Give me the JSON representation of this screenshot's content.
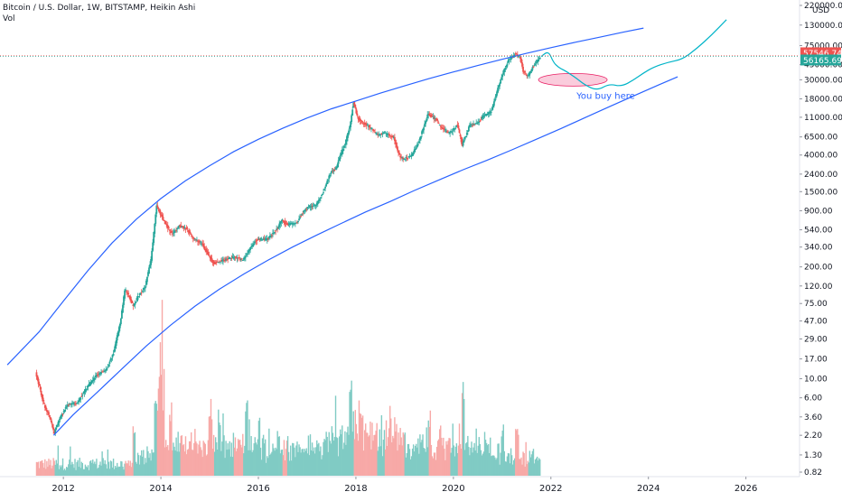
{
  "header": {
    "symbol_line": "Bitcoin / U.S. Dollar, 1W, BITSTAMP, Heikin Ashi",
    "volume_label": "Vol"
  },
  "chart_data": {
    "type": "candlestick",
    "title": "Bitcoin / U.S. Dollar, 1W, BITSTAMP, Heikin Ashi",
    "y_scale": "log",
    "y_unit": "USD",
    "x_range": [
      2010.7,
      2027.1
    ],
    "y_range": [
      0.82,
      220000
    ],
    "y_ticks": [
      "220000.00",
      "130000.00",
      "75000.00",
      "45000.00",
      "30000.00",
      "18000.00",
      "11000.00",
      "6500.00",
      "4000.00",
      "2400.00",
      "1500.00",
      "900.00",
      "540.00",
      "340.00",
      "200.00",
      "120.00",
      "75.00",
      "47.00",
      "29.00",
      "17.00",
      "10.00",
      "6.00",
      "3.60",
      "2.20",
      "1.30",
      "0.82"
    ],
    "y_tick_values": [
      220000,
      130000,
      75000,
      45000,
      30000,
      18000,
      11000,
      6500,
      4000,
      2400,
      1500,
      900,
      540,
      340,
      200,
      120,
      75,
      47,
      29,
      17,
      10,
      6,
      3.6,
      2.2,
      1.3,
      0.82
    ],
    "x_ticks": [
      2012,
      2014,
      2016,
      2018,
      2020,
      2022,
      2024,
      2026
    ],
    "x_tick_labels": [
      "2012",
      "2014",
      "2016",
      "2018",
      "2020",
      "2022",
      "2024",
      "2026"
    ],
    "price_path": [
      [
        2011.45,
        12
      ],
      [
        2011.62,
        5
      ],
      [
        2011.75,
        3.5
      ],
      [
        2011.83,
        2.3
      ],
      [
        2011.95,
        3.5
      ],
      [
        2012.1,
        5
      ],
      [
        2012.3,
        5.2
      ],
      [
        2012.5,
        8
      ],
      [
        2012.7,
        11
      ],
      [
        2012.9,
        13
      ],
      [
        2013.05,
        20
      ],
      [
        2013.2,
        50
      ],
      [
        2013.28,
        110
      ],
      [
        2013.35,
        95
      ],
      [
        2013.45,
        70
      ],
      [
        2013.55,
        90
      ],
      [
        2013.7,
        120
      ],
      [
        2013.82,
        250
      ],
      [
        2013.9,
        700
      ],
      [
        2013.93,
        1050
      ],
      [
        2014.0,
        850
      ],
      [
        2014.1,
        650
      ],
      [
        2014.25,
        480
      ],
      [
        2014.4,
        600
      ],
      [
        2014.55,
        550
      ],
      [
        2014.7,
        420
      ],
      [
        2014.85,
        380
      ],
      [
        2015.0,
        270
      ],
      [
        2015.1,
        220
      ],
      [
        2015.3,
        240
      ],
      [
        2015.5,
        260
      ],
      [
        2015.7,
        240
      ],
      [
        2015.85,
        330
      ],
      [
        2016.0,
        420
      ],
      [
        2016.2,
        420
      ],
      [
        2016.4,
        550
      ],
      [
        2016.5,
        700
      ],
      [
        2016.6,
        620
      ],
      [
        2016.8,
        650
      ],
      [
        2016.95,
        900
      ],
      [
        2017.05,
        1000
      ],
      [
        2017.2,
        1050
      ],
      [
        2017.35,
        1500
      ],
      [
        2017.5,
        2500
      ],
      [
        2017.6,
        2700
      ],
      [
        2017.7,
        4000
      ],
      [
        2017.8,
        5500
      ],
      [
        2017.9,
        9000
      ],
      [
        2017.97,
        16500
      ],
      [
        2018.05,
        11000
      ],
      [
        2018.15,
        9500
      ],
      [
        2018.3,
        8500
      ],
      [
        2018.45,
        7000
      ],
      [
        2018.6,
        7200
      ],
      [
        2018.8,
        6400
      ],
      [
        2018.9,
        4000
      ],
      [
        2019.0,
        3600
      ],
      [
        2019.15,
        3900
      ],
      [
        2019.3,
        5500
      ],
      [
        2019.45,
        10000
      ],
      [
        2019.5,
        12000
      ],
      [
        2019.65,
        10500
      ],
      [
        2019.8,
        8000
      ],
      [
        2019.95,
        7200
      ],
      [
        2020.1,
        9000
      ],
      [
        2020.2,
        5200
      ],
      [
        2020.35,
        8800
      ],
      [
        2020.5,
        9300
      ],
      [
        2020.65,
        11500
      ],
      [
        2020.8,
        13000
      ],
      [
        2020.95,
        26000
      ],
      [
        2021.05,
        38000
      ],
      [
        2021.15,
        50000
      ],
      [
        2021.28,
        60000
      ],
      [
        2021.38,
        56000
      ],
      [
        2021.45,
        38000
      ],
      [
        2021.55,
        33000
      ],
      [
        2021.62,
        40000
      ],
      [
        2021.72,
        48000
      ],
      [
        2021.8,
        56000
      ]
    ],
    "projection_path": [
      [
        2021.8,
        56000
      ],
      [
        2021.95,
        65000
      ],
      [
        2022.05,
        48000
      ],
      [
        2022.15,
        42000
      ],
      [
        2022.3,
        38000
      ],
      [
        2022.5,
        32000
      ],
      [
        2022.7,
        26000
      ],
      [
        2022.95,
        22500
      ],
      [
        2023.2,
        27000
      ],
      [
        2023.45,
        25000
      ],
      [
        2023.7,
        30000
      ],
      [
        2023.9,
        36000
      ],
      [
        2024.1,
        42000
      ],
      [
        2024.4,
        48000
      ],
      [
        2024.7,
        52000
      ],
      [
        2025.0,
        70000
      ],
      [
        2025.3,
        100000
      ],
      [
        2025.6,
        150000
      ]
    ],
    "upper_curve": [
      [
        2010.85,
        14.5
      ],
      [
        2011.5,
        35
      ],
      [
        2012.0,
        80
      ],
      [
        2012.5,
        180
      ],
      [
        2013.0,
        380
      ],
      [
        2013.5,
        720
      ],
      [
        2014.0,
        1250
      ],
      [
        2014.5,
        2000
      ],
      [
        2015.0,
        3000
      ],
      [
        2015.5,
        4400
      ],
      [
        2016.0,
        6100
      ],
      [
        2016.5,
        8200
      ],
      [
        2017.0,
        10800
      ],
      [
        2017.5,
        13800
      ],
      [
        2018.0,
        17000
      ],
      [
        2018.5,
        21000
      ],
      [
        2019.0,
        25500
      ],
      [
        2019.5,
        31000
      ],
      [
        2020.0,
        37000
      ],
      [
        2020.5,
        44000
      ],
      [
        2021.0,
        52000
      ],
      [
        2021.5,
        61000
      ],
      [
        2022.0,
        71000
      ],
      [
        2022.5,
        82000
      ],
      [
        2023.0,
        94000
      ],
      [
        2023.5,
        108000
      ],
      [
        2023.9,
        120000
      ]
    ],
    "lower_curve": [
      [
        2011.8,
        2.2
      ],
      [
        2012.2,
        3.8
      ],
      [
        2012.7,
        7
      ],
      [
        2013.2,
        13
      ],
      [
        2013.7,
        24
      ],
      [
        2014.2,
        42
      ],
      [
        2014.7,
        70
      ],
      [
        2015.2,
        110
      ],
      [
        2015.7,
        165
      ],
      [
        2016.2,
        240
      ],
      [
        2016.7,
        340
      ],
      [
        2017.2,
        470
      ],
      [
        2017.7,
        640
      ],
      [
        2018.2,
        870
      ],
      [
        2018.7,
        1150
      ],
      [
        2019.2,
        1550
      ],
      [
        2019.7,
        2050
      ],
      [
        2020.2,
        2700
      ],
      [
        2020.7,
        3500
      ],
      [
        2021.2,
        4600
      ],
      [
        2021.7,
        6100
      ],
      [
        2022.2,
        8100
      ],
      [
        2022.7,
        10900
      ],
      [
        2023.2,
        14600
      ],
      [
        2023.7,
        19500
      ],
      [
        2024.2,
        26000
      ],
      [
        2024.6,
        32500
      ]
    ],
    "volume_spikes": [
      [
        2013.45,
        0.25
      ],
      [
        2013.9,
        0.5
      ],
      [
        2013.95,
        0.7
      ],
      [
        2014.0,
        1.0
      ],
      [
        2014.05,
        0.6
      ],
      [
        2014.2,
        0.4
      ],
      [
        2015.0,
        0.45
      ],
      [
        2015.2,
        0.3
      ],
      [
        2015.75,
        0.35
      ],
      [
        2016.0,
        0.3
      ],
      [
        2017.9,
        0.5
      ],
      [
        2018.1,
        0.3
      ],
      [
        2019.5,
        0.35
      ],
      [
        2020.2,
        0.55
      ],
      [
        2021.0,
        0.3
      ],
      [
        2021.3,
        0.35
      ]
    ],
    "current_price": "57546.74",
    "current_price_value": 57546.74,
    "previous_close": "56165.69",
    "previous_close_value": 56165.69,
    "colors": {
      "up": "#26a69a",
      "down": "#ef5350",
      "curve": "#2962ff",
      "projection": "#00b4c8",
      "ellipse_fill": "#f8bbd0",
      "ellipse_stroke": "#e91e63",
      "annotation": "#2962ff"
    },
    "buy_zone": {
      "x_center": 2022.45,
      "y_center": 30000
    },
    "annotation": "You buy here",
    "legend": "none",
    "grid": false
  }
}
